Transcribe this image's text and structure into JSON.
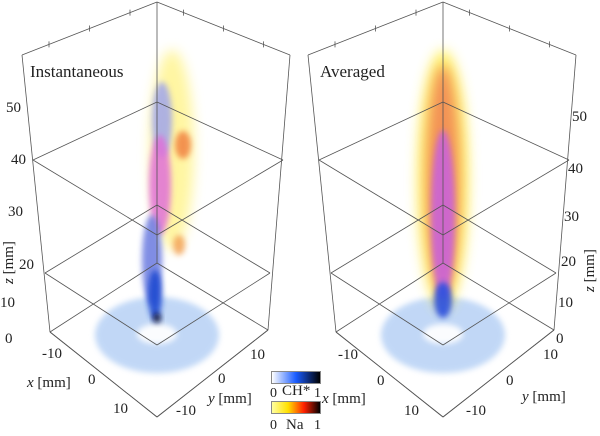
{
  "panels": [
    {
      "title": "Instantaneous",
      "z_ticks": [
        "0",
        "10",
        "20",
        "30",
        "40",
        "50"
      ],
      "x_ticks": [
        "-10",
        "0",
        "10"
      ],
      "y_ticks": [
        "10",
        "0",
        "-10"
      ],
      "z_label": {
        "var": "z",
        "unit": "[mm]"
      },
      "x_label": {
        "var": "x",
        "unit": "[mm]"
      },
      "y_label": {
        "var": "y",
        "unit": "[mm]"
      }
    },
    {
      "title": "Averaged",
      "z_ticks": [
        "0",
        "10",
        "20",
        "30",
        "40",
        "50"
      ],
      "x_ticks": [
        "-10",
        "0",
        "10"
      ],
      "y_ticks": [
        "10",
        "0",
        "-10"
      ],
      "z_label": {
        "var": "z",
        "unit": "[mm]"
      },
      "x_label": {
        "var": "x",
        "unit": "[mm]"
      },
      "y_label": {
        "var": "y",
        "unit": "[mm]"
      }
    }
  ],
  "colorbars": [
    {
      "label": "CH*",
      "min": "0",
      "max": "1",
      "colors": [
        "#ffffff",
        "#1a5cff",
        "#000000"
      ]
    },
    {
      "label": "Na",
      "min": "0",
      "max": "1",
      "colors": [
        "#ffffa0",
        "#ffe000",
        "#ff2000",
        "#000000"
      ]
    }
  ]
}
